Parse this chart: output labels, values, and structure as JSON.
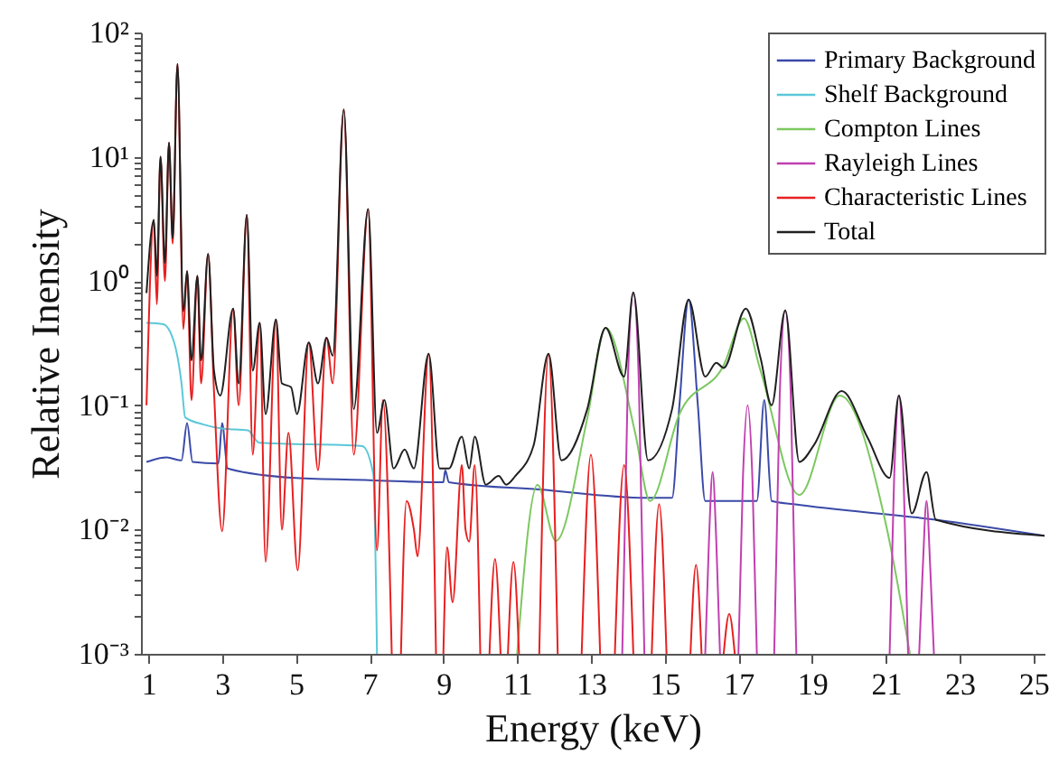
{
  "chart_data": {
    "type": "line",
    "xlabel": "Energy (keV)",
    "ylabel": "Relative Inensity",
    "log": "y",
    "legend": "top right",
    "line_style": "solid",
    "xlim": [
      0.8,
      25.3
    ],
    "xticks": [
      1,
      3,
      5,
      7,
      9,
      11,
      13,
      15,
      17,
      19,
      21,
      23,
      25
    ],
    "ylim": [
      0.001,
      100
    ],
    "yticks": [
      {
        "value": 0.001,
        "label": "10⁻³"
      },
      {
        "value": 0.002,
        "label": null
      },
      {
        "value": 0.003,
        "label": null
      },
      {
        "value": 0.004,
        "label": null
      },
      {
        "value": 0.005,
        "label": null
      },
      {
        "value": 0.006,
        "label": null
      },
      {
        "value": 0.007,
        "label": null
      },
      {
        "value": 0.008,
        "label": null
      },
      {
        "value": 0.009,
        "label": null
      },
      {
        "value": 0.01,
        "label": "10⁻²"
      },
      {
        "value": 0.02,
        "label": null
      },
      {
        "value": 0.03,
        "label": null
      },
      {
        "value": 0.04,
        "label": null
      },
      {
        "value": 0.05,
        "label": null
      },
      {
        "value": 0.06,
        "label": null
      },
      {
        "value": 0.07,
        "label": null
      },
      {
        "value": 0.08,
        "label": null
      },
      {
        "value": 0.09,
        "label": null
      },
      {
        "value": 0.1,
        "label": "10⁻¹"
      },
      {
        "value": 0.2,
        "label": null
      },
      {
        "value": 0.3,
        "label": null
      },
      {
        "value": 0.4,
        "label": null
      },
      {
        "value": 0.5,
        "label": null
      },
      {
        "value": 0.6,
        "label": null
      },
      {
        "value": 0.7,
        "label": null
      },
      {
        "value": 0.8,
        "label": null
      },
      {
        "value": 0.9,
        "label": null
      },
      {
        "value": 1,
        "label": "10⁰"
      },
      {
        "value": 2,
        "label": null
      },
      {
        "value": 3,
        "label": null
      },
      {
        "value": 4,
        "label": null
      },
      {
        "value": 5,
        "label": null
      },
      {
        "value": 6,
        "label": null
      },
      {
        "value": 7,
        "label": null
      },
      {
        "value": 8,
        "label": null
      },
      {
        "value": 9,
        "label": null
      },
      {
        "value": 10,
        "label": "10¹"
      },
      {
        "value": 20,
        "label": null
      },
      {
        "value": 30,
        "label": null
      },
      {
        "value": 40,
        "label": null
      },
      {
        "value": 50,
        "label": null
      },
      {
        "value": 60,
        "label": null
      },
      {
        "value": 70,
        "label": null
      },
      {
        "value": 80,
        "label": null
      },
      {
        "value": 90,
        "label": null
      },
      {
        "value": 100,
        "label": "10²"
      }
    ],
    "series": [
      {
        "name": "Primary Background",
        "color": "#3a4aa8",
        "x": [
          0.95,
          1.5,
          1.9,
          2.05,
          2.2,
          2.9,
          3.0,
          3.15,
          5,
          7,
          9,
          9.05,
          9.15,
          11.6,
          14.5,
          15.2,
          15.4,
          15.65,
          15.9,
          16.1,
          17.5,
          17.7,
          17.9,
          18.5,
          22.35,
          25.3
        ],
        "values": [
          0.035,
          0.038,
          0.036,
          0.072,
          0.035,
          0.034,
          0.072,
          0.031,
          0.026,
          0.025,
          0.024,
          0.03,
          0.024,
          0.021,
          0.018,
          0.018,
          0.1,
          0.71,
          0.1,
          0.017,
          0.017,
          0.11,
          0.017,
          0.016,
          0.012,
          0.0089
        ]
      },
      {
        "name": "Shelf Background",
        "color": "#5bc8d8",
        "x": [
          0.95,
          1.4,
          1.7,
          1.9,
          2.0,
          2.5,
          3.0,
          3.7,
          4.0,
          6.8,
          7.1,
          7.2
        ],
        "values": [
          0.46,
          0.45,
          0.32,
          0.15,
          0.08,
          0.07,
          0.065,
          0.063,
          0.05,
          0.047,
          0.028,
          0.001
        ]
      },
      {
        "name": "Compton Lines",
        "color": "#7cc860",
        "x": [
          11.0,
          11.55,
          12.05,
          12.9,
          13.4,
          14.2,
          14.6,
          15.4,
          16.6,
          17.15,
          17.6,
          18.65,
          19.75,
          21.0,
          21.65
        ],
        "values": [
          0.001,
          0.023,
          0.0081,
          0.078,
          0.42,
          0.06,
          0.017,
          0.085,
          0.21,
          0.5,
          0.19,
          0.019,
          0.12,
          0.011,
          0.001
        ]
      },
      {
        "name": "Rayleigh Lines",
        "color": "#c040b0",
        "x": [
          13.85,
          14.0,
          14.15,
          14.3,
          14.45,
          14.5,
          16.1,
          16.2,
          16.3,
          16.4,
          16.5,
          16.55,
          17.0,
          17.12,
          17.25,
          17.38,
          17.5,
          17.55,
          17.97,
          18.12,
          18.27,
          18.42,
          18.57,
          18.6,
          21.1,
          21.22,
          21.35,
          21.48,
          21.6,
          21.65,
          21.9,
          22.0,
          22.1,
          22.2,
          22.3
        ],
        "values": [
          0.001,
          0.15,
          0.8,
          0.15,
          0.001,
          null,
          0.001,
          0.008,
          0.029,
          0.008,
          0.001,
          null,
          0.001,
          0.025,
          0.1,
          0.025,
          0.001,
          null,
          0.001,
          0.12,
          0.58,
          0.12,
          0.001,
          null,
          0.001,
          0.025,
          0.12,
          0.025,
          0.001,
          null,
          0.001,
          0.005,
          0.017,
          0.005,
          0.001
        ]
      },
      {
        "name": "Characteristic Lines",
        "color": "#e82020",
        "x": [
          0.95,
          1.15,
          1.23,
          1.33,
          1.45,
          1.56,
          1.66,
          1.79,
          1.95,
          2.05,
          2.17,
          2.33,
          2.43,
          2.62,
          2.78,
          3.0,
          3.3,
          3.45,
          3.67,
          3.83,
          4.02,
          4.18,
          4.46,
          4.62,
          4.8,
          5.05,
          5.35,
          5.6,
          5.83,
          6.0,
          6.3,
          6.57,
          6.96,
          7.2,
          7.36,
          7.6,
          7.7,
          7.85,
          8.0,
          8.2,
          8.3,
          8.6,
          8.8,
          8.85,
          9.0,
          9.1,
          9.25,
          9.5,
          9.6,
          9.7,
          9.85,
          10.0,
          10.05,
          10.25,
          10.4,
          10.55,
          10.6,
          10.75,
          10.9,
          11.05,
          11.1,
          11.6,
          11.85,
          12.1,
          12.2,
          12.75,
          13.0,
          13.25,
          13.3,
          13.65,
          13.9,
          14.15,
          14.2,
          14.65,
          14.85,
          15.05,
          15.1,
          15.7,
          15.85,
          16.0,
          16.05,
          16.6,
          16.75,
          16.9
        ],
        "values": [
          0.1,
          3.1,
          0.65,
          10,
          1.0,
          13,
          2.0,
          56,
          0.41,
          1.2,
          0.11,
          1.1,
          0.15,
          1.65,
          0.13,
          0.0097,
          0.6,
          0.1,
          3.4,
          0.04,
          0.46,
          0.0055,
          0.49,
          0.01,
          0.06,
          0.0047,
          0.32,
          0.03,
          0.35,
          0.15,
          24,
          0.04,
          3.8,
          0.0068,
          0.11,
          0.001,
          null,
          0.001,
          0.017,
          0.01,
          0.0061,
          0.26,
          0.001,
          null,
          0.001,
          0.0072,
          0.0026,
          0.033,
          0.01,
          0.008,
          0.033,
          0.001,
          null,
          0.001,
          0.0058,
          0.001,
          null,
          0.001,
          0.0055,
          0.001,
          null,
          0.001,
          0.26,
          0.001,
          null,
          0.001,
          0.04,
          0.001,
          null,
          0.001,
          0.033,
          0.001,
          null,
          0.001,
          0.016,
          0.001,
          null,
          0.001,
          0.0052,
          0.001,
          null,
          0.001,
          0.0021,
          0.001
        ]
      },
      {
        "name": "Total",
        "color": "#202020",
        "x": [
          0.95,
          1.15,
          1.23,
          1.33,
          1.45,
          1.56,
          1.66,
          1.79,
          1.95,
          2.05,
          2.17,
          2.33,
          2.43,
          2.62,
          2.78,
          2.95,
          3.3,
          3.45,
          3.67,
          3.83,
          4.02,
          4.18,
          4.46,
          4.62,
          4.87,
          5.03,
          5.35,
          5.6,
          5.83,
          6.0,
          6.3,
          6.57,
          6.96,
          7.2,
          7.4,
          7.65,
          7.95,
          8.2,
          8.6,
          8.9,
          9.15,
          9.5,
          9.7,
          9.85,
          10.15,
          10.5,
          10.7,
          10.95,
          11.45,
          11.85,
          12.2,
          12.9,
          13.4,
          13.9,
          14.15,
          14.55,
          15.2,
          15.65,
          16.1,
          16.4,
          16.6,
          17.2,
          17.6,
          17.9,
          18.27,
          18.65,
          19.05,
          19.8,
          20.5,
          21.1,
          21.35,
          21.7,
          22.1,
          22.35,
          25.3
        ],
        "values": [
          0.8,
          3.1,
          1.1,
          10,
          1.4,
          13,
          2.2,
          56,
          0.57,
          1.2,
          0.23,
          1.1,
          0.23,
          1.65,
          0.19,
          0.12,
          0.6,
          0.15,
          3.4,
          0.19,
          0.46,
          0.085,
          0.49,
          0.15,
          0.14,
          0.085,
          0.32,
          0.15,
          0.35,
          0.25,
          24,
          0.093,
          3.8,
          0.06,
          0.11,
          0.031,
          0.044,
          0.031,
          0.26,
          0.031,
          0.031,
          0.056,
          0.031,
          0.056,
          0.023,
          0.027,
          0.023,
          0.027,
          0.048,
          0.26,
          0.036,
          0.093,
          0.42,
          0.17,
          0.81,
          0.036,
          0.093,
          0.71,
          0.17,
          0.22,
          0.2,
          0.6,
          0.24,
          0.1,
          0.58,
          0.035,
          0.048,
          0.13,
          0.055,
          0.026,
          0.12,
          0.0135,
          0.029,
          0.012,
          0.0089
        ]
      }
    ]
  }
}
